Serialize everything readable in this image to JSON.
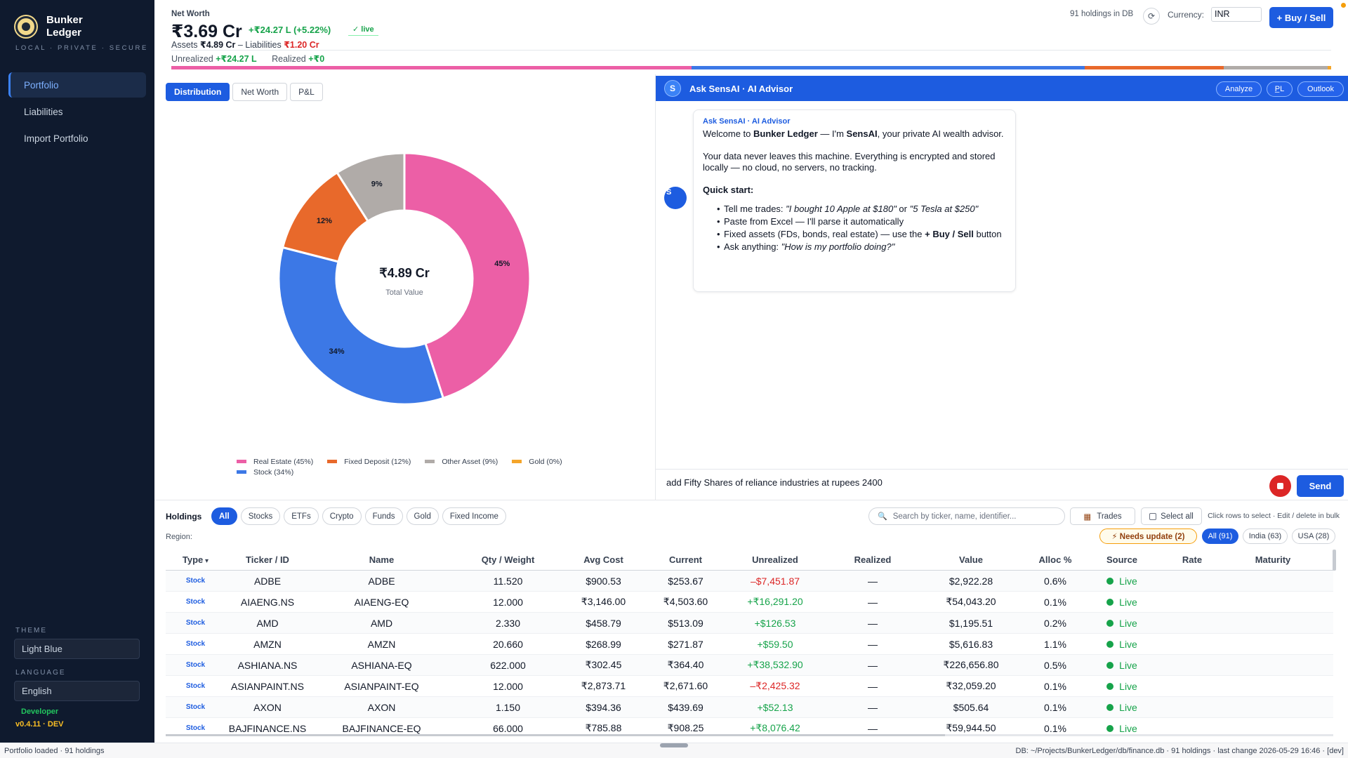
{
  "brand": {
    "name": "Bunker\nLedger",
    "tagline": "LOCAL · PRIVATE · SECURE"
  },
  "nav": [
    {
      "label": "Portfolio",
      "active": true
    },
    {
      "label": "Liabilities",
      "active": false
    },
    {
      "label": "Import Portfolio",
      "active": false
    }
  ],
  "sidebar": {
    "theme_label": "THEME",
    "theme_value": "Light Blue",
    "language_label": "LANGUAGE",
    "language_value": "English",
    "developer": "Developer",
    "version": "v0.4.11 · DEV"
  },
  "header": {
    "net_worth_label": "Net Worth",
    "net_worth": "₹3.69 Cr",
    "change": "+₹24.27 L (+5.22%)",
    "live": "✓ live",
    "assets_label": "Assets",
    "assets": "₹4.89 Cr",
    "liabilities_label": "– Liabilities",
    "liabilities": "₹1.20 Cr",
    "unrealized_label": "Unrealized",
    "unrealized": "+₹24.27 L",
    "realized_label": "Realized",
    "realized": "+₹0",
    "holdings_in_db": "91 holdings in DB",
    "refresh_icon": "⟳",
    "currency_label": "Currency:",
    "currency": "INR",
    "buy_sell": "+ Buy / Sell"
  },
  "alloc_bar": [
    {
      "name": "Real Estate",
      "pct": 45,
      "color": "#ec5fa6"
    },
    {
      "name": "Stock",
      "pct": 34,
      "color": "#3c78e6"
    },
    {
      "name": "Fixed Deposit",
      "pct": 12,
      "color": "#e8692b"
    },
    {
      "name": "Other Asset",
      "pct": 9,
      "color": "#b0aba8"
    },
    {
      "name": "Gold",
      "pct": 0.3,
      "color": "#f4a52a"
    }
  ],
  "chart_tabs": [
    {
      "label": "Distribution",
      "active": true
    },
    {
      "label": "Net Worth",
      "active": false
    },
    {
      "label": "P&L",
      "active": false
    }
  ],
  "chart_data": {
    "type": "pie",
    "center_value": "₹4.89 Cr",
    "center_label": "Total Value",
    "slices": [
      {
        "name": "Real Estate",
        "value": 45,
        "label": "45%",
        "color": "#ec5fa6"
      },
      {
        "name": "Stock",
        "value": 34,
        "label": "34%",
        "color": "#3c78e6"
      },
      {
        "name": "Fixed Deposit",
        "value": 12,
        "label": "12%",
        "color": "#e8692b"
      },
      {
        "name": "Other Asset",
        "value": 9,
        "label": "9%",
        "color": "#b0aba8"
      },
      {
        "name": "Gold",
        "value": 0,
        "label": "",
        "color": "#f4a52a"
      }
    ],
    "legend": [
      "Real Estate (45%)",
      "Fixed Deposit (12%)",
      "Other Asset (9%)",
      "Gold (0%)",
      "Stock (34%)"
    ],
    "legend_colors": [
      "#ec5fa6",
      "#e8692b",
      "#b0aba8",
      "#f4a52a",
      "#3c78e6"
    ]
  },
  "chat": {
    "avatar": "S",
    "title": "Ask SensAI · AI Advisor",
    "buttons": [
      "Analyze",
      "P̲L",
      "Outlook"
    ],
    "bot_avatar": "S",
    "from": "Ask SensAI · AI Advisor",
    "welcome_pre": "Welcome to ",
    "welcome_brand": "Bunker Ledger",
    "welcome_mid": " — I'm ",
    "welcome_ai": "SensAI",
    "welcome_post": ", your private AI wealth advisor.",
    "privacy": "Your data never leaves this machine. Everything is encrypted and stored locally — no cloud, no servers, no tracking.",
    "quick_start": "Quick start:",
    "tips": {
      "t1_pre": "Tell me trades: ",
      "t1_q1": "\"I bought 10 Apple at $180\"",
      "t1_or": " or ",
      "t1_q2": "\"5 Tesla at $250\"",
      "t2": "Paste from Excel — I'll parse it automatically",
      "t3_pre": "Fixed assets (FDs, bonds, real estate) — use the ",
      "t3_btn": "+ Buy / Sell",
      "t3_post": " button",
      "t4_pre": "Ask anything: ",
      "t4_q": "\"How is my portfolio doing?\""
    },
    "input_value": "add Fifty Shares of reliance industries at rupees 2400",
    "send": "Send"
  },
  "holdings": {
    "title": "Holdings",
    "filters": [
      {
        "label": "All",
        "active": true
      },
      {
        "label": "Stocks"
      },
      {
        "label": "ETFs"
      },
      {
        "label": "Crypto"
      },
      {
        "label": "Funds"
      },
      {
        "label": "Gold"
      },
      {
        "label": "Fixed Income"
      }
    ],
    "search_placeholder": "Search by ticker, name, identifier...",
    "trades": "Trades",
    "select_all": "Select all",
    "hint": "Click rows to select · Edit / delete in bulk",
    "region_label": "Region:",
    "needs_update": "⚡ Needs update (2)",
    "regions": [
      "All (91)",
      "India (63)",
      "USA (28)"
    ],
    "columns": [
      "Type",
      "Ticker / ID",
      "Name",
      "Qty / Weight",
      "Avg Cost",
      "Current",
      "Unrealized",
      "Realized",
      "Value",
      "Alloc %",
      "Source",
      "Rate",
      "Maturity"
    ],
    "rows": [
      {
        "type": "Stock",
        "ticker": "ADBE",
        "name": "ADBE",
        "qty": "11.520",
        "avg": "$900.53",
        "cur": "$253.67",
        "unreal": "–$7,451.87",
        "sign": "neg",
        "real": "—",
        "value": "$2,922.28",
        "alloc": "0.6%",
        "src": "Live"
      },
      {
        "type": "Stock",
        "ticker": "AIAENG.NS",
        "name": "AIAENG-EQ",
        "qty": "12.000",
        "avg": "₹3,146.00",
        "cur": "₹4,503.60",
        "unreal": "+₹16,291.20",
        "sign": "pos",
        "real": "—",
        "value": "₹54,043.20",
        "alloc": "0.1%",
        "src": "Live"
      },
      {
        "type": "Stock",
        "ticker": "AMD",
        "name": "AMD",
        "qty": "2.330",
        "avg": "$458.79",
        "cur": "$513.09",
        "unreal": "+$126.53",
        "sign": "pos",
        "real": "—",
        "value": "$1,195.51",
        "alloc": "0.2%",
        "src": "Live"
      },
      {
        "type": "Stock",
        "ticker": "AMZN",
        "name": "AMZN",
        "qty": "20.660",
        "avg": "$268.99",
        "cur": "$271.87",
        "unreal": "+$59.50",
        "sign": "pos",
        "real": "—",
        "value": "$5,616.83",
        "alloc": "1.1%",
        "src": "Live"
      },
      {
        "type": "Stock",
        "ticker": "ASHIANA.NS",
        "name": "ASHIANA-EQ",
        "qty": "622.000",
        "avg": "₹302.45",
        "cur": "₹364.40",
        "unreal": "+₹38,532.90",
        "sign": "pos",
        "real": "—",
        "value": "₹226,656.80",
        "alloc": "0.5%",
        "src": "Live"
      },
      {
        "type": "Stock",
        "ticker": "ASIANPAINT.NS",
        "name": "ASIANPAINT-EQ",
        "qty": "12.000",
        "avg": "₹2,873.71",
        "cur": "₹2,671.60",
        "unreal": "–₹2,425.32",
        "sign": "neg",
        "real": "—",
        "value": "₹32,059.20",
        "alloc": "0.1%",
        "src": "Live"
      },
      {
        "type": "Stock",
        "ticker": "AXON",
        "name": "AXON",
        "qty": "1.150",
        "avg": "$394.36",
        "cur": "$439.69",
        "unreal": "+$52.13",
        "sign": "pos",
        "real": "—",
        "value": "$505.64",
        "alloc": "0.1%",
        "src": "Live"
      },
      {
        "type": "Stock",
        "ticker": "BAJFINANCE.NS",
        "name": "BAJFINANCE-EQ",
        "qty": "66.000",
        "avg": "₹785.88",
        "cur": "₹908.25",
        "unreal": "+₹8,076.42",
        "sign": "pos",
        "real": "—",
        "value": "₹59,944.50",
        "alloc": "0.1%",
        "src": "Live"
      }
    ]
  },
  "status": {
    "left": "Portfolio loaded · 91 holdings",
    "right": "DB: ~/Projects/BunkerLedger/db/finance.db · 91 holdings · last change 2026-05-29 16:46 · [dev]"
  }
}
